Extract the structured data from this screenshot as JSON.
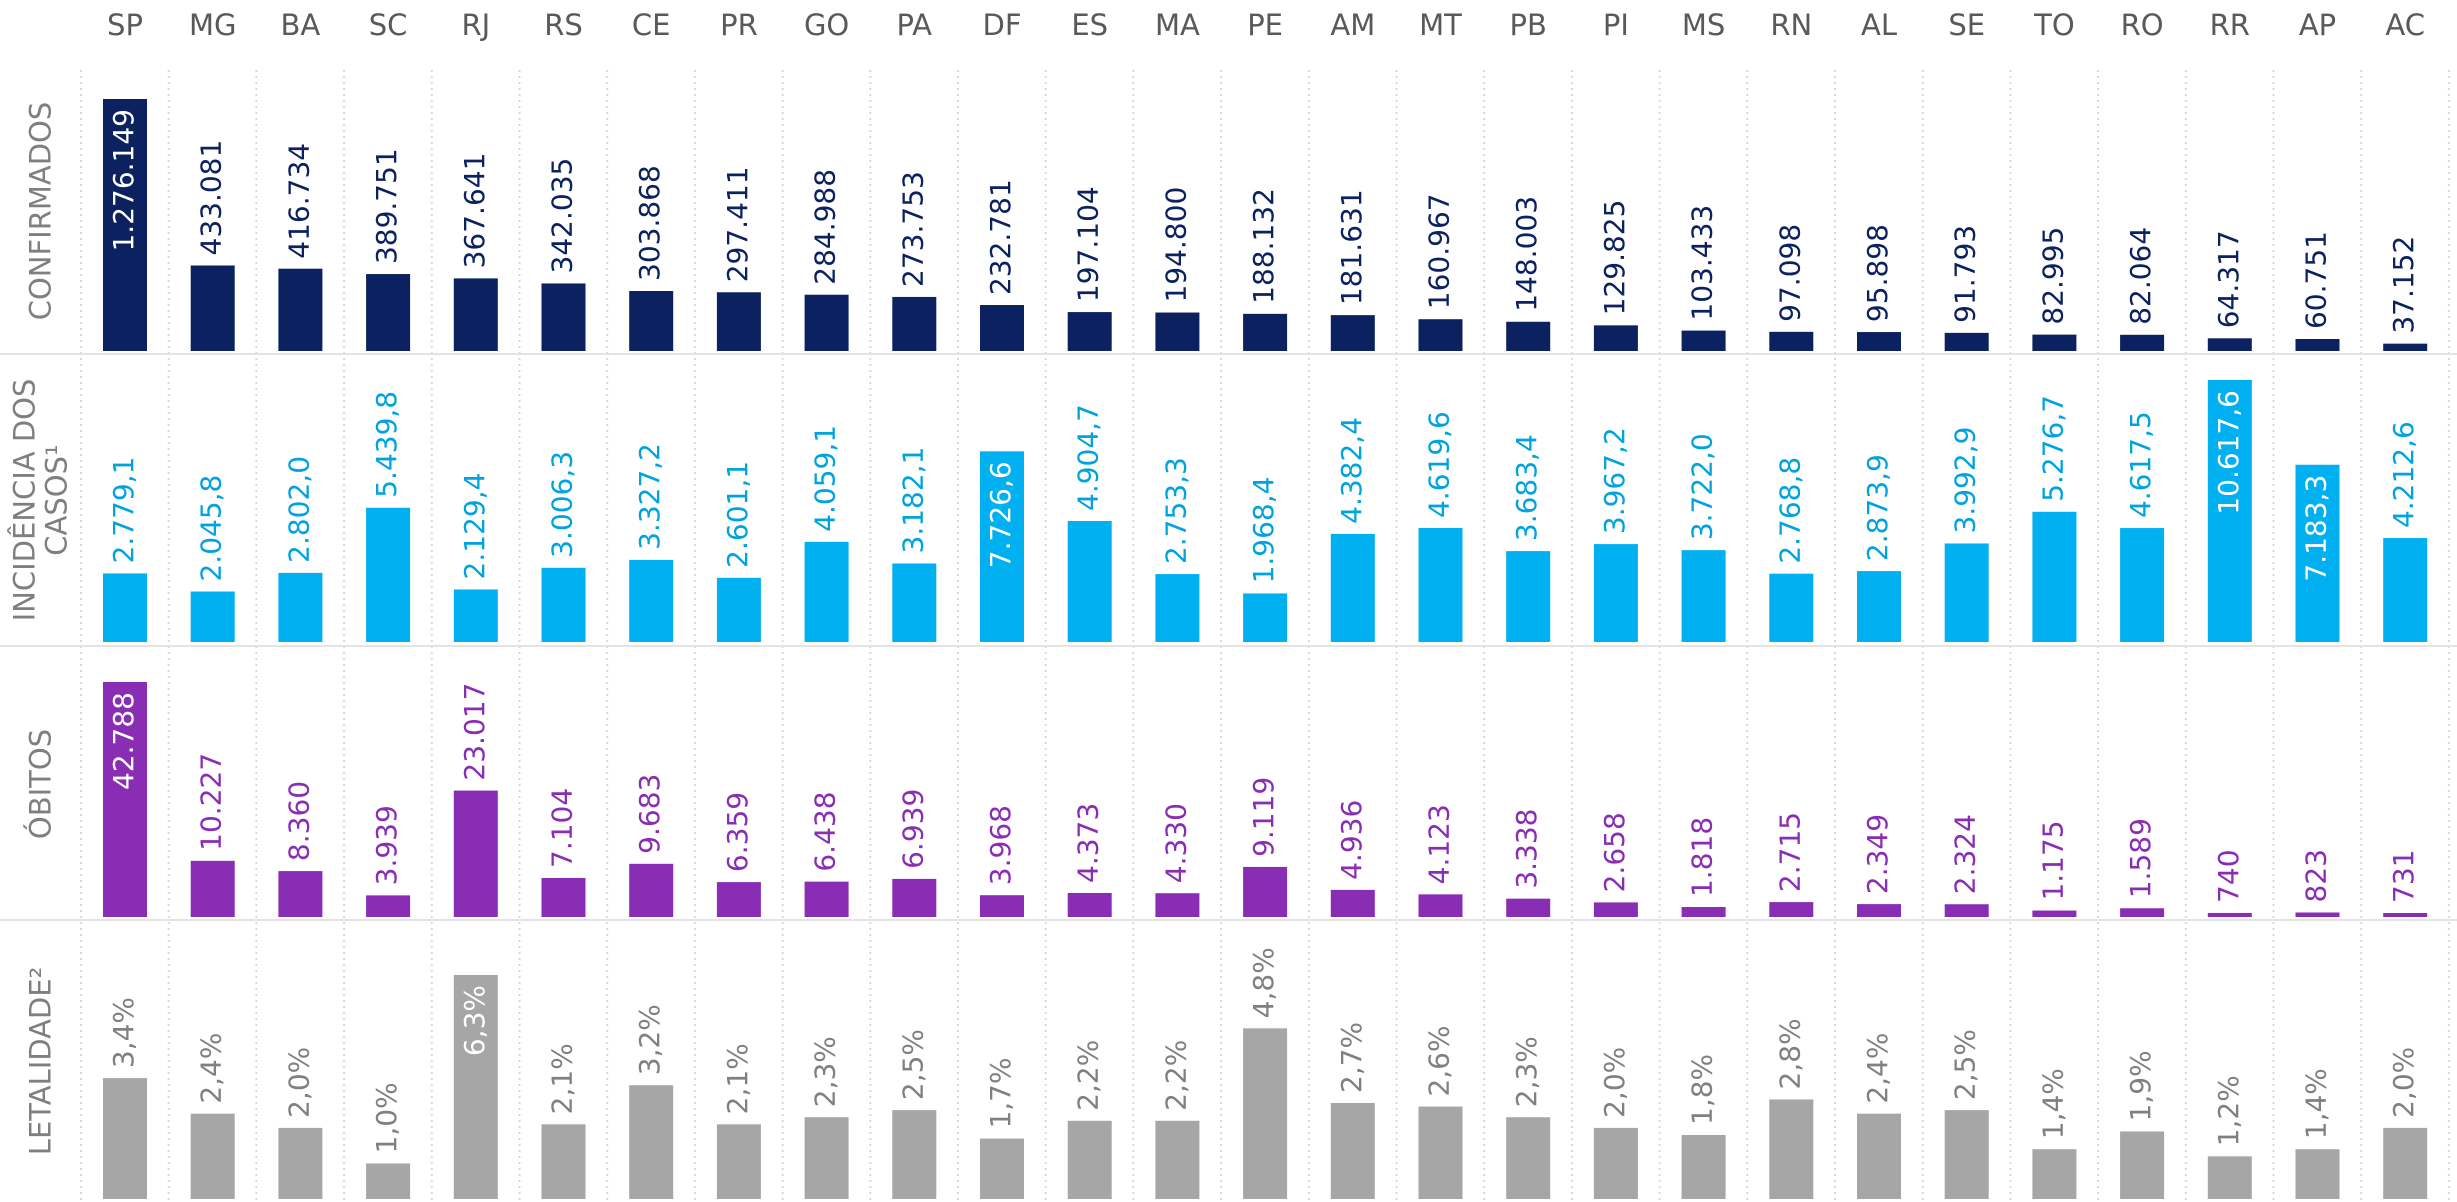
{
  "chart_data": {
    "type": "bar",
    "categories": [
      "SP",
      "MG",
      "BA",
      "SC",
      "RJ",
      "RS",
      "CE",
      "PR",
      "GO",
      "PA",
      "DF",
      "ES",
      "MA",
      "PE",
      "AM",
      "MT",
      "PB",
      "PI",
      "MS",
      "RN",
      "AL",
      "SE",
      "TO",
      "RO",
      "RR",
      "AP",
      "AC"
    ],
    "series": [
      {
        "name": "CONFIRMADOS",
        "color": "#0b2160",
        "label_color": "#0b2160",
        "values": [
          1276149,
          433081,
          416734,
          389751,
          367641,
          342035,
          303868,
          297411,
          284988,
          273753,
          232781,
          197104,
          194800,
          188132,
          181631,
          160967,
          148003,
          129825,
          103433,
          97098,
          95898,
          91793,
          82995,
          82064,
          64317,
          60751,
          37152
        ],
        "value_labels": [
          "1.276.149",
          "433.081",
          "416.734",
          "389.751",
          "367.641",
          "342.035",
          "303.868",
          "297.411",
          "284.988",
          "273.753",
          "232.781",
          "197.104",
          "194.800",
          "188.132",
          "181.631",
          "160.967",
          "148.003",
          "129.825",
          "103.433",
          "97.098",
          "95.898",
          "91.793",
          "82.995",
          "82.064",
          "64.317",
          "60.751",
          "37.152"
        ]
      },
      {
        "name": "INCIDÊNCIA DOS CASOS¹",
        "color": "#00b0f0",
        "label_color": "#00a3e0",
        "values": [
          2779.1,
          2045.8,
          2802.0,
          5439.8,
          2129.4,
          3006.3,
          3327.2,
          2601.1,
          4059.1,
          3182.1,
          7726.6,
          4904.7,
          2753.3,
          1968.4,
          4382.4,
          4619.6,
          3683.4,
          3967.2,
          3722.0,
          2768.8,
          2873.9,
          3992.9,
          5276.7,
          4617.5,
          10617.6,
          7183.3,
          4212.6
        ],
        "value_labels": [
          "2.779,1",
          "2.045,8",
          "2.802,0",
          "5.439,8",
          "2.129,4",
          "3.006,3",
          "3.327,2",
          "2.601,1",
          "4.059,1",
          "3.182,1",
          "7.726,6",
          "4.904,7",
          "2.753,3",
          "1.968,4",
          "4.382,4",
          "4.619,6",
          "3.683,4",
          "3.967,2",
          "3.722,0",
          "2.768,8",
          "2.873,9",
          "3.992,9",
          "5.276,7",
          "4.617,5",
          "10.617,6",
          "7.183,3",
          "4.212,6"
        ]
      },
      {
        "name": "ÓBITOS",
        "color": "#8a2db5",
        "label_color": "#8a2db5",
        "values": [
          42788,
          10227,
          8360,
          3939,
          23017,
          7104,
          9683,
          6359,
          6438,
          6939,
          3968,
          4373,
          4330,
          9119,
          4936,
          4123,
          3338,
          2658,
          1818,
          2715,
          2349,
          2324,
          1175,
          1589,
          740,
          823,
          731
        ],
        "value_labels": [
          "42.788",
          "10.227",
          "8.360",
          "3.939",
          "23.017",
          "7.104",
          "9.683",
          "6.359",
          "6.438",
          "6.939",
          "3.968",
          "4.373",
          "4.330",
          "9.119",
          "4.936",
          "4.123",
          "3.338",
          "2.658",
          "1.818",
          "2.715",
          "2.349",
          "2.324",
          "1.175",
          "1.589",
          "740",
          "823",
          "731"
        ]
      },
      {
        "name": "LETALIDADE²",
        "color": "#a6a6a6",
        "label_color": "#808080",
        "values": [
          3.4,
          2.4,
          2.0,
          1.0,
          6.3,
          2.1,
          3.2,
          2.1,
          2.3,
          2.5,
          1.7,
          2.2,
          2.2,
          4.8,
          2.7,
          2.6,
          2.3,
          2.0,
          1.8,
          2.8,
          2.4,
          2.5,
          1.4,
          1.9,
          1.2,
          1.4,
          2.0
        ],
        "value_labels": [
          "3,4%",
          "2,4%",
          "2,0%",
          "1,0%",
          "6,3%",
          "2,1%",
          "3,2%",
          "2,1%",
          "2,3%",
          "2,5%",
          "1,7%",
          "2,2%",
          "2,2%",
          "4,8%",
          "2,7%",
          "2,6%",
          "2,3%",
          "2,0%",
          "1,8%",
          "2,8%",
          "2,4%",
          "2,5%",
          "1,4%",
          "1,9%",
          "1,2%",
          "1,4%",
          "2,0%"
        ]
      }
    ]
  }
}
